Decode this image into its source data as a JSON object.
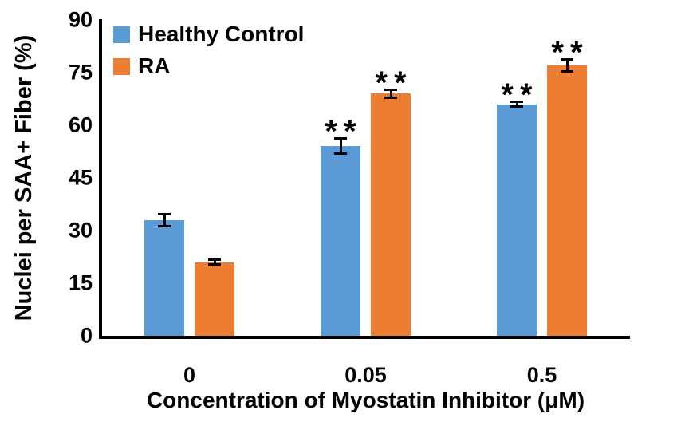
{
  "chart_data": {
    "type": "bar",
    "title": "",
    "categories": [
      "0",
      "0.05",
      "0.5"
    ],
    "series": [
      {
        "name": "Healthy Control",
        "color": "#5B9BD5",
        "values": [
          33,
          54,
          66
        ],
        "errors": [
          2,
          2.5,
          1
        ],
        "significance": [
          "",
          "**",
          "**"
        ]
      },
      {
        "name": "RA",
        "color": "#ED7D31",
        "values": [
          21,
          69,
          77
        ],
        "errors": [
          1,
          1.5,
          2
        ],
        "significance": [
          "",
          "**",
          "**"
        ]
      }
    ],
    "xlabel": "Concentration of Myostatin Inhibitor (μM)",
    "ylabel": "Nuclei per SAA+ Fiber (%)",
    "ylim": [
      0,
      90
    ],
    "yticks": [
      0,
      15,
      30,
      45,
      60,
      75,
      90
    ],
    "grid": false,
    "legend_position": "top-left",
    "axis_color": "#000000",
    "text_color": "#000000",
    "background_color": "#FFFFFF"
  }
}
